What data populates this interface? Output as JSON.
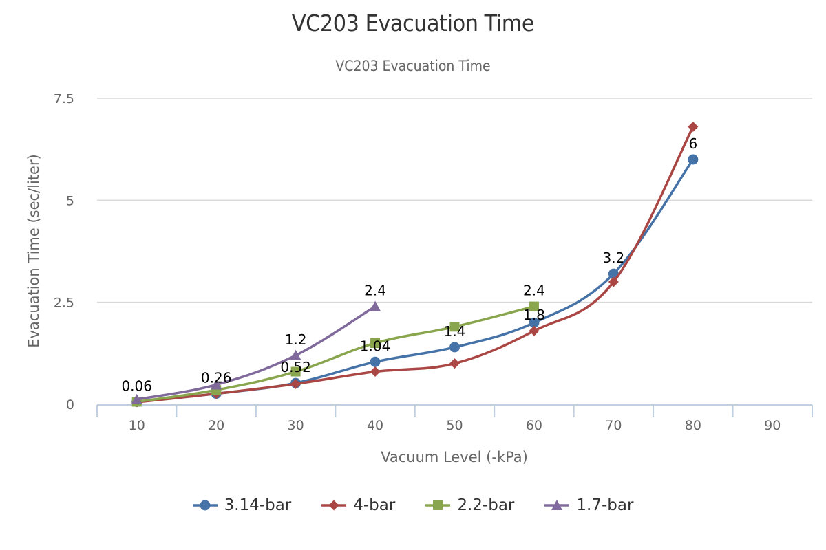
{
  "chart_data": {
    "type": "line",
    "title": "VC203 Evacuation Time",
    "subtitle": "VC203 Evacuation Time",
    "xlabel": "Vacuum Level (-kPa)",
    "ylabel": "Evacuation Time (sec/liter)",
    "categories": [
      "10",
      "20",
      "30",
      "40",
      "50",
      "60",
      "70",
      "80",
      "90"
    ],
    "ylim": [
      0,
      7.5
    ],
    "yticks": [
      "0",
      "2.5",
      "5",
      "7.5"
    ],
    "grid": true,
    "legend_position": "bottom",
    "smooth": true,
    "series": [
      {
        "name": "3.14-bar",
        "color": "#4572A7",
        "marker": "circle",
        "values": [
          0.06,
          0.26,
          0.52,
          1.04,
          1.4,
          2.0,
          3.2,
          6.0,
          null
        ]
      },
      {
        "name": "4-bar",
        "color": "#AA4643",
        "marker": "diamond",
        "values": [
          0.05,
          0.26,
          0.5,
          0.8,
          1.0,
          1.8,
          3.0,
          6.8,
          null
        ]
      },
      {
        "name": "2.2-bar",
        "color": "#89A54E",
        "marker": "square",
        "values": [
          0.06,
          0.35,
          0.8,
          1.5,
          1.9,
          2.4,
          null,
          null,
          null
        ]
      },
      {
        "name": "1.7-bar",
        "color": "#80699B",
        "marker": "triangle",
        "values": [
          0.12,
          0.48,
          1.2,
          2.4,
          null,
          null,
          null,
          null,
          null
        ]
      }
    ],
    "data_labels": [
      {
        "category": "10",
        "y": 0.06,
        "text": "0.06"
      },
      {
        "category": "20",
        "y": 0.26,
        "text": "0.26"
      },
      {
        "category": "30",
        "y": 0.52,
        "text": "0.52"
      },
      {
        "category": "30",
        "y": 1.2,
        "text": "1.2"
      },
      {
        "category": "40",
        "y": 1.04,
        "text": "1.04"
      },
      {
        "category": "40",
        "y": 2.4,
        "text": "2.4"
      },
      {
        "category": "50",
        "y": 1.4,
        "text": "1.4"
      },
      {
        "category": "60",
        "y": 1.8,
        "text": "1.8"
      },
      {
        "category": "60",
        "y": 2.4,
        "text": "2.4"
      },
      {
        "category": "70",
        "y": 3.2,
        "text": "3.2"
      },
      {
        "category": "80",
        "y": 6.0,
        "text": "6"
      }
    ]
  }
}
